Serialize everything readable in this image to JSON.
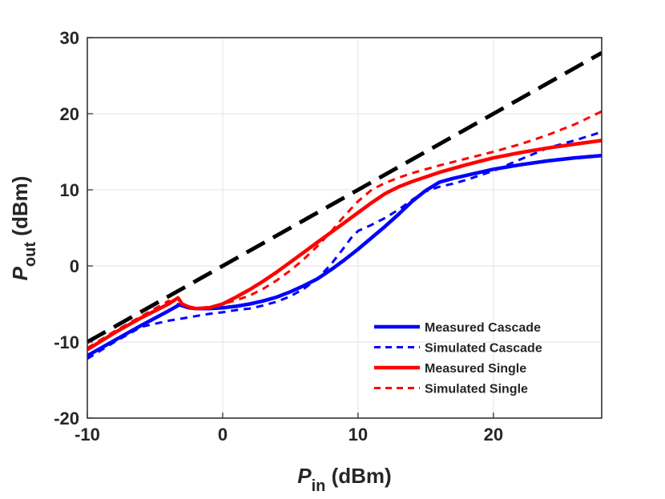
{
  "chart_data": {
    "type": "line",
    "title": "",
    "xlabel": {
      "main": "P",
      "sub": "in",
      "unit": " (dBm)"
    },
    "ylabel": {
      "main": "P",
      "sub": "out",
      "unit": " (dBm)"
    },
    "xlim": [
      -10,
      28
    ],
    "ylim": [
      -20,
      30
    ],
    "xticks": [
      -10,
      0,
      10,
      20
    ],
    "yticks": [
      -20,
      -10,
      0,
      10,
      20,
      30
    ],
    "xtick_labels": [
      "-10",
      "0",
      "10",
      "20"
    ],
    "ytick_labels": [
      "-20",
      "-10",
      "0",
      "10",
      "20",
      "30"
    ],
    "grid": true,
    "legend_position": "bottom-right",
    "series": [
      {
        "name": "Measured Cascade",
        "color": "#0000ff",
        "style": "solid",
        "in_legend": true,
        "x": [
          -10,
          -8,
          -6,
          -4,
          -3.2,
          -2.5,
          -2,
          -1,
          0,
          1,
          2,
          3,
          4,
          5,
          6,
          7,
          8,
          9,
          10,
          11,
          12,
          13,
          14,
          15,
          16,
          17,
          18,
          20,
          22,
          24,
          26,
          28
        ],
        "y": [
          -11.8,
          -9.8,
          -7.8,
          -5.9,
          -5.1,
          -5.5,
          -5.6,
          -5.6,
          -5.5,
          -5.3,
          -5.0,
          -4.6,
          -4.1,
          -3.4,
          -2.6,
          -1.7,
          -0.5,
          0.8,
          2.2,
          3.7,
          5.2,
          6.8,
          8.5,
          9.9,
          11.0,
          11.5,
          11.9,
          12.7,
          13.3,
          13.8,
          14.2,
          14.5
        ]
      },
      {
        "name": "Simulated Cascade",
        "color": "#0000ff",
        "style": "dashed",
        "in_legend": true,
        "x": [
          -10,
          -8,
          -6,
          -4,
          -3,
          -2,
          -1,
          0,
          1,
          2,
          3,
          4,
          5,
          6,
          7,
          8,
          9,
          9.5,
          10,
          11,
          12,
          13,
          14,
          15,
          16,
          17,
          18,
          20,
          22,
          24,
          26,
          28
        ],
        "y": [
          -12.2,
          -10.0,
          -8.0,
          -7.2,
          -6.9,
          -6.6,
          -6.3,
          -6.1,
          -5.8,
          -5.6,
          -5.2,
          -4.7,
          -4.0,
          -3.0,
          -1.7,
          0.2,
          2.5,
          3.7,
          4.6,
          5.4,
          6.3,
          7.4,
          8.7,
          9.8,
          10.4,
          10.8,
          11.3,
          12.5,
          14.0,
          15.5,
          16.5,
          17.6
        ]
      },
      {
        "name": "Measured Single",
        "color": "#ff0000",
        "style": "solid",
        "in_legend": true,
        "x": [
          -10,
          -8,
          -6,
          -4,
          -3.3,
          -3,
          -2.5,
          -2,
          -1,
          0,
          1,
          2,
          3,
          4,
          5,
          6,
          7,
          8,
          9,
          10,
          11,
          12,
          13,
          14,
          16,
          18,
          20,
          22,
          24,
          26,
          28
        ],
        "y": [
          -11.0,
          -8.8,
          -6.8,
          -5.0,
          -4.2,
          -5.0,
          -5.4,
          -5.6,
          -5.5,
          -5.0,
          -4.1,
          -3.1,
          -2.0,
          -0.8,
          0.5,
          1.8,
          3.1,
          4.4,
          5.7,
          7.0,
          8.3,
          9.5,
          10.4,
          11.1,
          12.3,
          13.3,
          14.2,
          14.9,
          15.5,
          16.0,
          16.5
        ]
      },
      {
        "name": "Simulated Single",
        "color": "#ff0000",
        "style": "dashed",
        "in_legend": true,
        "x": [
          -10,
          -8,
          -6,
          -4,
          -3,
          -2,
          -1,
          0,
          1,
          2,
          3,
          4,
          5,
          6,
          7,
          8,
          9,
          10,
          11,
          12,
          13,
          14,
          16,
          18,
          20,
          22,
          24,
          26,
          28
        ],
        "y": [
          -10.8,
          -8.6,
          -6.6,
          -4.6,
          -5.2,
          -5.6,
          -5.4,
          -5.0,
          -4.5,
          -3.9,
          -3.0,
          -1.9,
          -0.6,
          0.9,
          2.6,
          4.5,
          6.6,
          8.5,
          10.0,
          10.9,
          11.6,
          12.2,
          13.2,
          14.1,
          15.0,
          16.0,
          17.2,
          18.6,
          20.3
        ]
      },
      {
        "name": "Linear reference",
        "color": "#000000",
        "style": "dashed",
        "in_legend": false,
        "x": [
          -10,
          28
        ],
        "y": [
          -10,
          28
        ]
      }
    ]
  }
}
